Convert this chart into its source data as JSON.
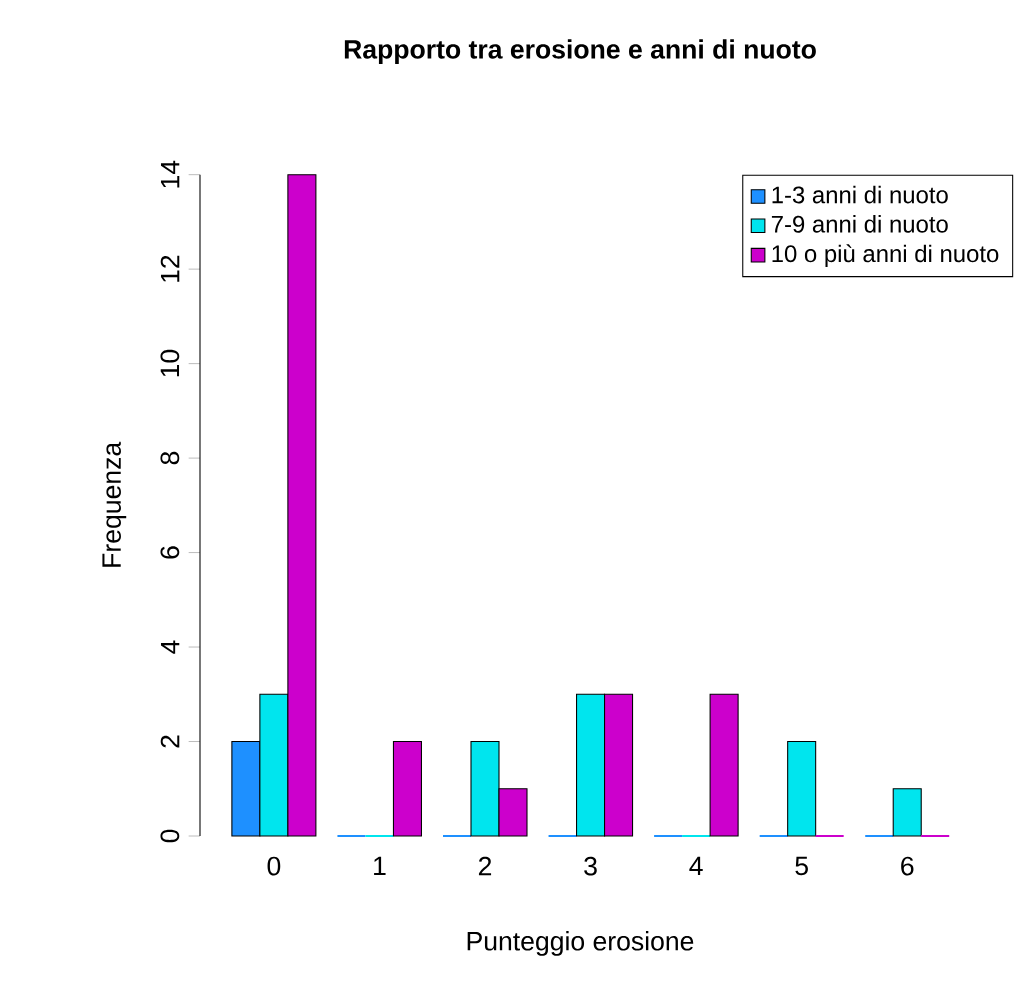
{
  "chart_data": {
    "type": "bar",
    "title": "Rapporto tra erosione e anni di nuoto",
    "xlabel": "Punteggio erosione",
    "ylabel": "Frequenza",
    "categories": [
      "0",
      "1",
      "2",
      "3",
      "4",
      "5",
      "6"
    ],
    "series": [
      {
        "name": "1-3 anni di nuoto",
        "color": "#1e90ff",
        "values": [
          2,
          0,
          0,
          0,
          0,
          0,
          0
        ]
      },
      {
        "name": "7-9 anni di nuoto",
        "color": "#00e5ee",
        "values": [
          3,
          0,
          2,
          3,
          0,
          2,
          1
        ]
      },
      {
        "name": "10 o più anni di nuoto",
        "color": "#cc00cc",
        "values": [
          14,
          2,
          1,
          3,
          3,
          0,
          0
        ]
      }
    ],
    "ylim": [
      0,
      14
    ],
    "yticks": [
      0,
      2,
      4,
      6,
      8,
      10,
      12,
      14
    ],
    "legend": "top right"
  }
}
